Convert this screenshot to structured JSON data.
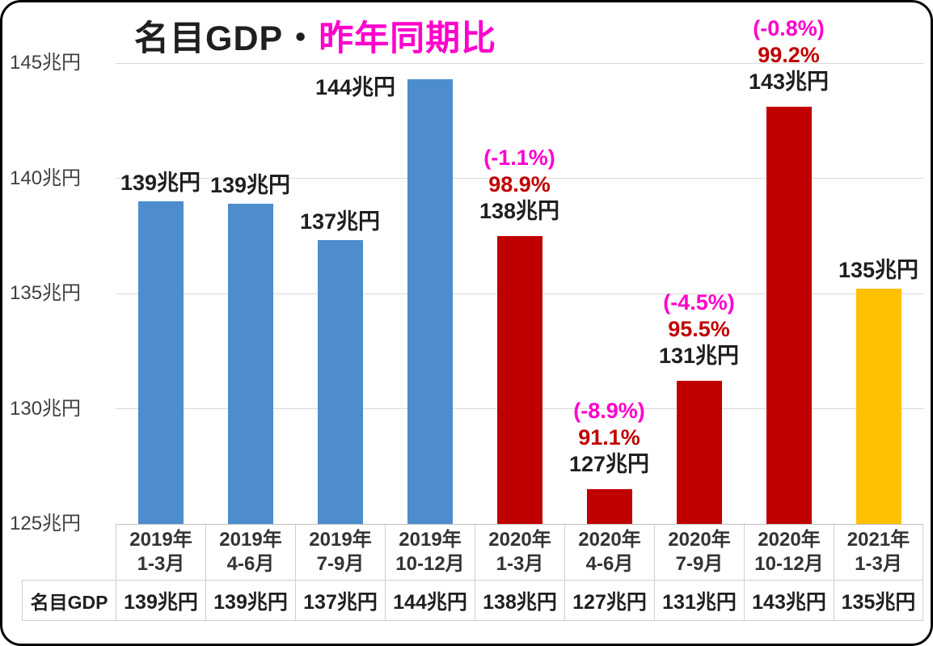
{
  "title": {
    "black_part": "名目GDP・",
    "magenta_part": "昨年同期比"
  },
  "colors": {
    "bar_blue": "#4D8DCE",
    "bar_red": "#C00000",
    "bar_orange": "#FFC000",
    "annotation_magenta": "#FF00CC",
    "annotation_dark_red": "#C00000",
    "text_black": "#1F1F1F",
    "axis_text": "#3F3F3F",
    "gridline": "#D9D9D9",
    "axis_line": "#BFBFBF",
    "table_border": "#CFCFCF",
    "frame_border": "#000000"
  },
  "chart_data": {
    "type": "bar",
    "title": "名目GDP・昨年同期比",
    "unit": "兆円",
    "ylim": [
      125,
      145
    ],
    "grid": true,
    "legend": false,
    "yticks": [
      {
        "value": 145,
        "label": "145兆円"
      },
      {
        "value": 140,
        "label": "140兆円"
      },
      {
        "value": 135,
        "label": "135兆円"
      },
      {
        "value": 130,
        "label": "130兆円"
      },
      {
        "value": 125,
        "label": "125兆円"
      }
    ],
    "bars": [
      {
        "category_line1": "2019年",
        "category_line2": "1-3月",
        "value": 139,
        "bar_value": 139.0,
        "label": "139兆円",
        "color_key": "bar_blue"
      },
      {
        "category_line1": "2019年",
        "category_line2": "4-6月",
        "value": 139,
        "bar_value": 138.9,
        "label": "139兆円",
        "color_key": "bar_blue"
      },
      {
        "category_line1": "2019年",
        "category_line2": "7-9月",
        "value": 137,
        "bar_value": 137.3,
        "label": "137兆円",
        "color_key": "bar_blue"
      },
      {
        "category_line1": "2019年",
        "category_line2": "10-12月",
        "value": 144,
        "bar_value": 144.3,
        "label": "144兆円",
        "color_key": "bar_blue",
        "label_dx": -92,
        "label_dy": 33
      },
      {
        "category_line1": "2020年",
        "category_line2": "1-3月",
        "value": 138,
        "bar_value": 137.5,
        "label": "138兆円",
        "color_key": "bar_red",
        "yoy_change": "(-1.1%)",
        "yoy_ratio": "98.9%"
      },
      {
        "category_line1": "2020年",
        "category_line2": "4-6月",
        "value": 127,
        "bar_value": 126.5,
        "label": "127兆円",
        "color_key": "bar_red",
        "yoy_change": "(-8.9%)",
        "yoy_ratio": "91.1%"
      },
      {
        "category_line1": "2020年",
        "category_line2": "7-9月",
        "value": 131,
        "bar_value": 131.2,
        "label": "131兆円",
        "color_key": "bar_red",
        "yoy_change": "(-4.5%)",
        "yoy_ratio": "95.5%"
      },
      {
        "category_line1": "2020年",
        "category_line2": "10-12月",
        "value": 143,
        "bar_value": 143.1,
        "label": "143兆円",
        "color_key": "bar_red",
        "yoy_change": "(-0.8%)",
        "yoy_ratio": "99.2%"
      },
      {
        "category_line1": "2021年",
        "category_line2": "1-3月",
        "value": 135,
        "bar_value": 135.2,
        "label": "135兆円",
        "color_key": "bar_orange"
      }
    ],
    "table": {
      "row_header": "名目GDP",
      "values": [
        "139兆円",
        "139兆円",
        "137兆円",
        "144兆円",
        "138兆円",
        "127兆円",
        "131兆円",
        "143兆円",
        "135兆円"
      ]
    }
  }
}
